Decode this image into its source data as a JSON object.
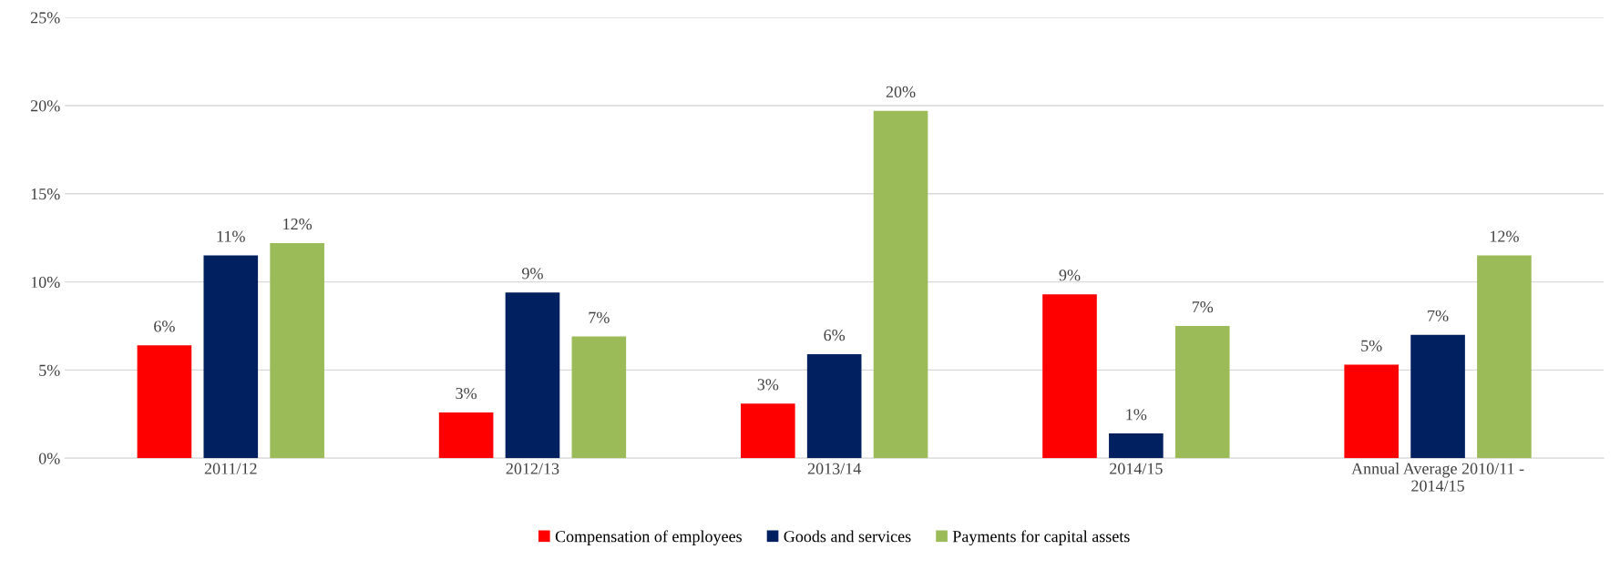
{
  "chart_data": {
    "type": "bar",
    "categories": [
      "2011/12",
      "2012/13",
      "2013/14",
      "2014/15",
      "Annual Average 2010/11 -\n2014/15"
    ],
    "series": [
      {
        "name": "Compensation of employees",
        "color": "#ff0000",
        "values": [
          6.4,
          2.6,
          3.1,
          9.3,
          5.3
        ],
        "value_labels": [
          "6%",
          "3%",
          "3%",
          "9%",
          "5%"
        ]
      },
      {
        "name": "Goods and services",
        "color": "#002060",
        "values": [
          11.5,
          9.4,
          5.9,
          1.4,
          7.0
        ],
        "value_labels": [
          "11%",
          "9%",
          "6%",
          "1%",
          "7%"
        ]
      },
      {
        "name": "Payments for capital assets",
        "color": "#9bbb59",
        "values": [
          12.2,
          6.9,
          19.7,
          7.5,
          11.5
        ],
        "value_labels": [
          "12%",
          "7%",
          "20%",
          "7%",
          "12%"
        ]
      }
    ],
    "ylim": [
      0,
      25
    ],
    "yticks": [
      {
        "value": 0,
        "label": "0%"
      },
      {
        "value": 5,
        "label": "5%"
      },
      {
        "value": 10,
        "label": "10%"
      },
      {
        "value": 15,
        "label": "15%"
      },
      {
        "value": 20,
        "label": "20%"
      },
      {
        "value": 25,
        "label": "25%"
      }
    ],
    "grid": "y",
    "legend": "bottom"
  }
}
